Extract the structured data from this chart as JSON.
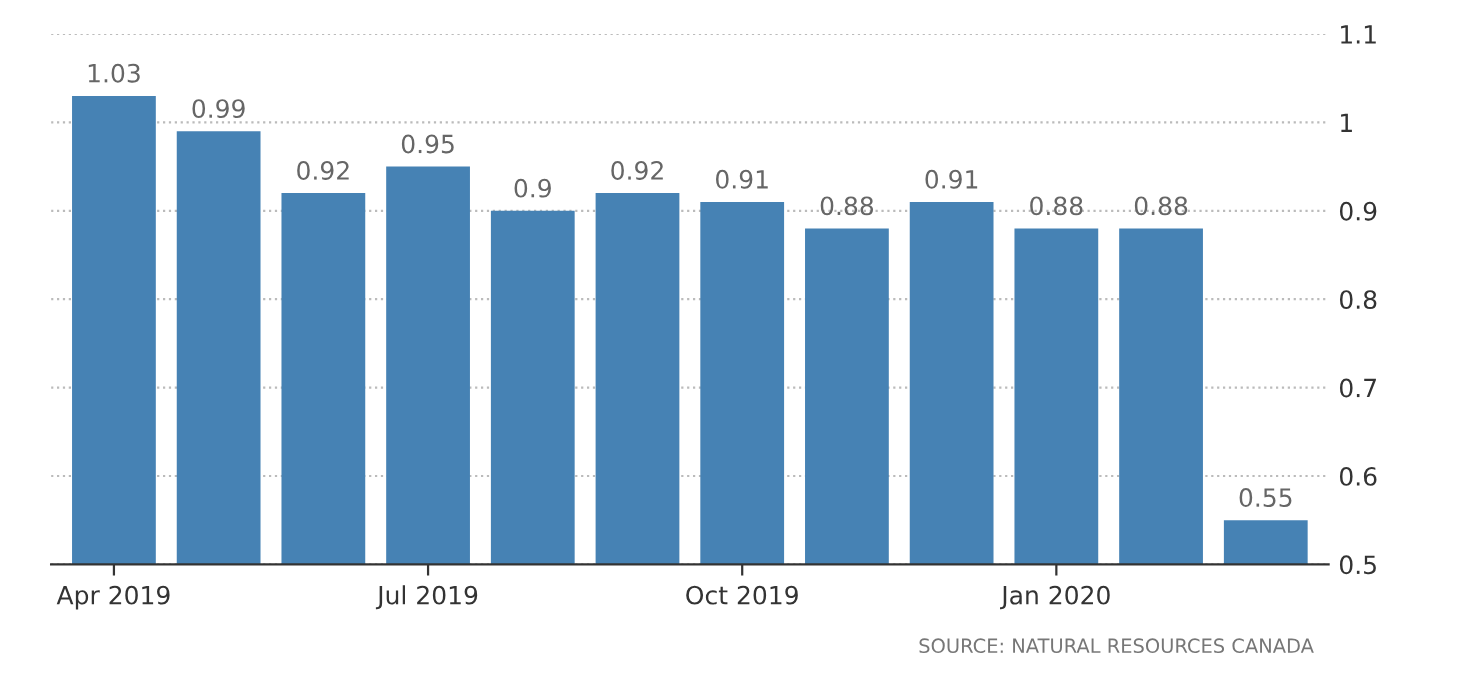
{
  "chart_data": {
    "type": "bar",
    "categories": [
      "Apr 2019",
      null,
      null,
      "Jul 2019",
      null,
      null,
      "Oct 2019",
      null,
      null,
      "Jan 2020",
      null,
      null
    ],
    "values": [
      1.03,
      0.99,
      0.92,
      0.95,
      0.9,
      0.92,
      0.91,
      0.88,
      0.91,
      0.88,
      0.88,
      0.55
    ],
    "color": "#4682b4",
    "ylim": [
      0.5,
      1.1
    ],
    "yticks": [
      0.5,
      0.6,
      0.7,
      0.8,
      0.9,
      1,
      1.1
    ],
    "grid": "y",
    "data_labels": true,
    "annotations": [
      "SOURCE: NATURAL RESOURCES CANADA"
    ]
  }
}
